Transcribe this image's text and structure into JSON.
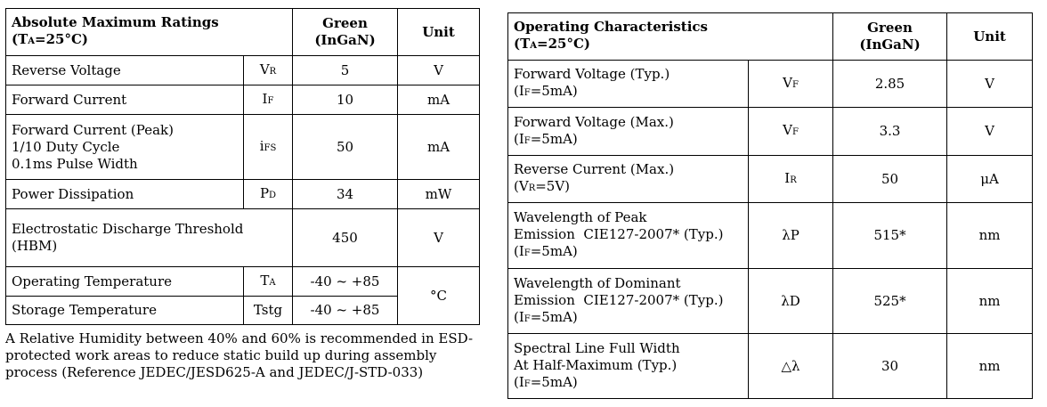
{
  "amr": {
    "title": "Absolute Maximum Ratings",
    "cond_prefix": "(T",
    "cond_sub": "A",
    "cond_suffix": "=25°C)",
    "col_green_1": "Green",
    "col_green_2": "(InGaN)",
    "col_unit": "Unit",
    "rows": [
      {
        "param": [
          "Reverse Voltage"
        ],
        "sym_main": "V",
        "sym_sub": "R",
        "value": "5",
        "unit": "V"
      },
      {
        "param": [
          "Forward Current"
        ],
        "sym_main": "I",
        "sym_sub": "F",
        "value": "10",
        "unit": "mA"
      },
      {
        "param": [
          "Forward Current (Peak)",
          "1/10 Duty Cycle",
          "0.1ms Pulse Width"
        ],
        "sym_main": "i",
        "sym_sub": "FS",
        "value": "50",
        "unit": "mA"
      },
      {
        "param": [
          "Power Dissipation"
        ],
        "sym_main": "P",
        "sym_sub": "D",
        "value": "34",
        "unit": "mW"
      },
      {
        "param": [
          "Electrostatic Discharge Threshold",
          "(HBM)"
        ],
        "sym_main": "",
        "sym_sub": "",
        "value": "450",
        "unit": "V"
      },
      {
        "param": [
          "Operating Temperature"
        ],
        "sym_main": "T",
        "sym_sub": "A",
        "value": "-40 ~ +85",
        "unit": "°C"
      },
      {
        "param": [
          "Storage Temperature"
        ],
        "sym_main": "Tstg",
        "sym_sub": "",
        "value": "-40 ~ +85",
        "unit": ""
      }
    ],
    "note": "A Relative Humidity between 40% and 60% is recommended in ESD-protected work areas to reduce static build up during assembly process (Reference JEDEC/JESD625-A and JEDEC/J-STD-033)"
  },
  "oc": {
    "title": "Operating Characteristics",
    "cond_prefix": "(T",
    "cond_sub": "A",
    "cond_suffix": "=25°C)",
    "col_green_1": "Green",
    "col_green_2": "(InGaN)",
    "col_unit": "Unit",
    "rows": [
      {
        "param": [
          "Forward Voltage (Typ.)"
        ],
        "cond": {
          "pre": "(I",
          "sub": "F",
          "post": "=5mA)"
        },
        "sym_main": "V",
        "sym_sub": "F",
        "value": "2.85",
        "unit": "V"
      },
      {
        "param": [
          "Forward Voltage (Max.)"
        ],
        "cond": {
          "pre": "(I",
          "sub": "F",
          "post": "=5mA)"
        },
        "sym_main": "V",
        "sym_sub": "F",
        "value": "3.3",
        "unit": "V"
      },
      {
        "param": [
          "Reverse Current (Max.)"
        ],
        "cond": {
          "pre": "(V",
          "sub": "R",
          "post": "=5V)"
        },
        "sym_main": "I",
        "sym_sub": "R",
        "value": "50",
        "unit": "μA"
      },
      {
        "param": [
          "Wavelength of Peak",
          "Emission  CIE127-2007* (Typ.)"
        ],
        "cond": {
          "pre": "(I",
          "sub": "F",
          "post": "=5mA)"
        },
        "sym_main": "λP",
        "sym_sub": "",
        "value": "515*",
        "unit": "nm"
      },
      {
        "param": [
          "Wavelength of Dominant",
          "Emission  CIE127-2007* (Typ.)"
        ],
        "cond": {
          "pre": "(I",
          "sub": "F",
          "post": "=5mA)"
        },
        "sym_main": "λD",
        "sym_sub": "",
        "value": "525*",
        "unit": "nm"
      },
      {
        "param": [
          "Spectral Line Full Width",
          "At Half-Maximum (Typ.)"
        ],
        "cond": {
          "pre": "(I",
          "sub": "F",
          "post": "=5mA)"
        },
        "sym_main": "△λ",
        "sym_sub": "",
        "value": "30",
        "unit": "nm"
      }
    ]
  }
}
